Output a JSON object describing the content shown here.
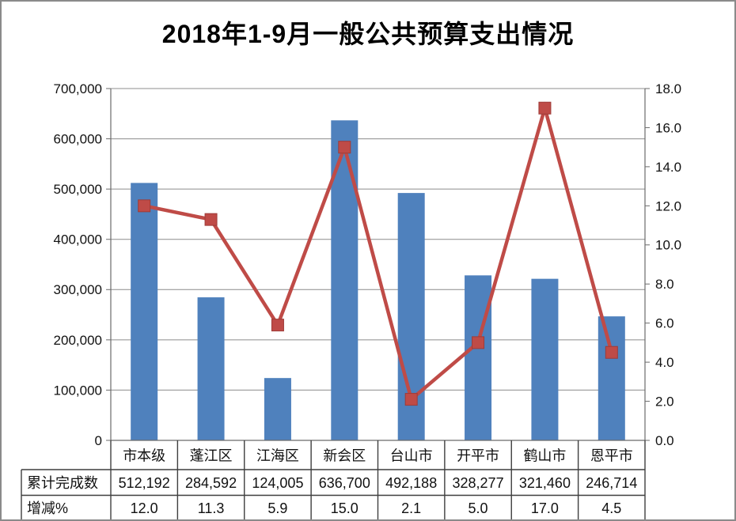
{
  "title": "2018年1-9月一般公共预算支出情况",
  "chart_data": {
    "type": "bar+line",
    "title": "2018年1-9月一般公共预算支出情况",
    "categories": [
      "市本级",
      "蓬江区",
      "江海区",
      "新会区",
      "台山市",
      "开平市",
      "鹤山市",
      "恩平市"
    ],
    "series": [
      {
        "name": "累计完成数",
        "type": "bar",
        "axis": "left",
        "color": "#4F81BD",
        "values": [
          512192,
          284592,
          124005,
          636700,
          492188,
          328277,
          321460,
          246714
        ]
      },
      {
        "name": "增减%",
        "type": "line",
        "axis": "right",
        "color": "#BF4B47",
        "marker": "square",
        "values": [
          12.0,
          11.3,
          5.9,
          15.0,
          2.1,
          5.0,
          17.0,
          4.5
        ]
      }
    ],
    "left_axis": {
      "min": 0,
      "max": 700000,
      "step": 100000,
      "tick_labels": [
        "0",
        "100,000",
        "200,000",
        "300,000",
        "400,000",
        "500,000",
        "600,000",
        "700,000"
      ]
    },
    "right_axis": {
      "min": 0,
      "max": 18,
      "step": 2,
      "tick_labels": [
        "0.0",
        "2.0",
        "4.0",
        "6.0",
        "8.0",
        "10.0",
        "12.0",
        "14.0",
        "16.0",
        "18.0"
      ]
    },
    "grid": true,
    "legend_position": "none"
  },
  "table": {
    "rows": [
      {
        "label": "累计完成数",
        "values": [
          "512,192",
          "284,592",
          "124,005",
          "636,700",
          "492,188",
          "328,277",
          "321,460",
          "246,714"
        ]
      },
      {
        "label": "增减%",
        "values": [
          "12.0",
          "11.3",
          "5.9",
          "15.0",
          "2.1",
          "5.0",
          "17.0",
          "4.5"
        ]
      }
    ]
  },
  "colors": {
    "bar": "#4F81BD",
    "line": "#BF4B47",
    "marker_edge": "#9E3B38",
    "grid": "#8C8C8C",
    "axis": "#6b6b6b",
    "table_border": "#3f3f3f",
    "frame_border": "#8a8a8a",
    "text": "#111111"
  }
}
